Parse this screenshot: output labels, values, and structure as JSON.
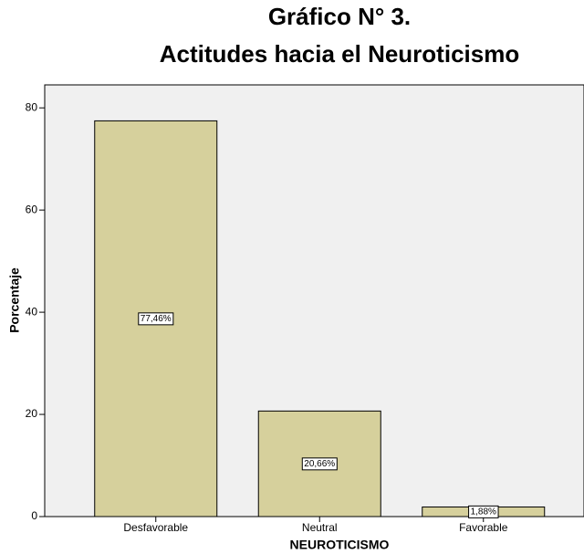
{
  "chart_data": {
    "type": "bar",
    "title": [
      "Gráfico N° 3.",
      "Actitudes hacia el Neuroticismo"
    ],
    "x_label": "NEUROTICISMO",
    "y_label": "Porcentaje",
    "categories": [
      "Desfavorable",
      "Neutral",
      "Favorable"
    ],
    "values": [
      77.46,
      20.66,
      1.88
    ],
    "value_labels": [
      "77,46%",
      "20,66%",
      "1,88%"
    ],
    "color": "#d6d09c",
    "ylim": [
      0,
      84.5
    ],
    "yticks": [
      0,
      20,
      40,
      60,
      80
    ],
    "grid": false
  }
}
